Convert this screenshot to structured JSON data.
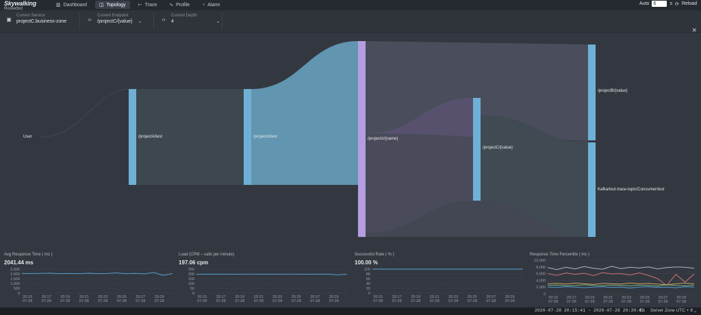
{
  "app": {
    "name": "Skywalking",
    "subtitle": "Rocketbot"
  },
  "nav": [
    {
      "label": "Dashboard",
      "icon": "dashboard-icon",
      "glyph": "▥",
      "active": false
    },
    {
      "label": "Topology",
      "icon": "topology-icon",
      "glyph": "◫",
      "active": true
    },
    {
      "label": "Trace",
      "icon": "trace-icon",
      "glyph": "⊢",
      "active": false
    },
    {
      "label": "Profile",
      "icon": "profile-icon",
      "glyph": "∿",
      "active": false
    },
    {
      "label": "Alarm",
      "icon": "alarm-icon",
      "glyph": "◔",
      "active": false
    }
  ],
  "auto_refresh": {
    "label": "Auto",
    "value": "6",
    "unit": "s",
    "reload_label": "Reload"
  },
  "toolbar": {
    "service": {
      "label": "Current Service",
      "value": "projectC.business-zone"
    },
    "endpoint": {
      "label": "Current Endpoint",
      "value": "/projectC/{value}"
    },
    "depth": {
      "label": "Current Depth",
      "value": "4"
    }
  },
  "topology": {
    "nodes": {
      "user": "User",
      "a_test_1": "/projectA/test",
      "a_test_2": "/projectA/test",
      "a_name": "/projectA/{name}",
      "c_value": "/projectC/{value}",
      "b_value": "/projectB/{value}",
      "kafka": "Kafka/test-trace-topic/Consumer/test"
    },
    "colors": {
      "bar": "#6fb1d6",
      "bar_selected": "#b59ee0",
      "flow_blue": "#6aa6c4",
      "flow_grey": "#4a4f5c",
      "flow_purple": "#5d5370"
    }
  },
  "time_ticks": [
    {
      "time": "20:15",
      "date": "07-28"
    },
    {
      "time": "20:17",
      "date": "07-28"
    },
    {
      "time": "20:19",
      "date": "07-28"
    },
    {
      "time": "20:21",
      "date": "07-28"
    },
    {
      "time": "20:23",
      "date": "07-28"
    },
    {
      "time": "20:25",
      "date": "07-28"
    },
    {
      "time": "20:27",
      "date": "07-28"
    },
    {
      "time": "20:29",
      "date": "07-28"
    }
  ],
  "metrics": {
    "avg_response": {
      "title": "Avg Response Time ( ms )",
      "value": "2041.44 ms",
      "chart_data": {
        "type": "line",
        "y_ticks": [
          "2,500",
          "2,000",
          "1,500",
          "1,000",
          "500",
          "0"
        ],
        "ylim": [
          0,
          2500
        ],
        "series": [
          {
            "color": "#5aa7e0",
            "values": [
              2050,
              2040,
              2060,
              2080,
              2030,
              2050,
              2020,
              2070,
              2040,
              2050,
              2100,
              2030,
              2060,
              2010,
              2150,
              1850,
              2040
            ]
          }
        ]
      }
    },
    "load": {
      "title": "Load (CPM – calls per minute)",
      "value": "197.06 cpm",
      "chart_data": {
        "type": "line",
        "y_ticks": [
          "250",
          "200",
          "150",
          "100",
          "50",
          "0"
        ],
        "ylim": [
          0,
          250
        ],
        "series": [
          {
            "color": "#5aa7e0",
            "values": [
              197,
              196,
              198,
              197,
              196,
              197,
              198,
              197,
              196,
              197,
              198,
              197,
              196,
              197,
              198,
              190,
              197
            ]
          }
        ]
      }
    },
    "success_rate": {
      "title": "Successful Rate ( % )",
      "value": "100.00 %",
      "chart_data": {
        "type": "line",
        "y_ticks": [
          "100",
          "80",
          "60",
          "40",
          "20",
          "0"
        ],
        "ylim": [
          0,
          100
        ],
        "series": [
          {
            "color": "#5aa7e0",
            "values": [
              100,
              100,
              100,
              100,
              100,
              100,
              100,
              100,
              100,
              100,
              100,
              100,
              100,
              100,
              100,
              100,
              100
            ]
          }
        ]
      }
    },
    "percentile": {
      "title": "Response Time Percentile ( ms )",
      "chart_data": {
        "type": "line",
        "y_ticks": [
          "10,000",
          "8,000",
          "6,000",
          "4,000",
          "2,000",
          "0"
        ],
        "ylim": [
          0,
          10000
        ],
        "series": [
          {
            "color": "#c2c6cc",
            "values": [
              7800,
              7200,
              7900,
              7400,
              8100,
              7600,
              7300,
              8200,
              7500,
              7900,
              7700,
              8000,
              7400,
              7800,
              8000,
              7900,
              7600
            ]
          },
          {
            "color": "#e07a7a",
            "values": [
              6000,
              5500,
              6200,
              5800,
              6100,
              5400,
              6300,
              5900,
              6000,
              5600,
              6200,
              5500,
              4500,
              2500,
              5800,
              3500,
              5900
            ]
          },
          {
            "color": "#e0b060",
            "values": [
              3000,
              3100,
              2900,
              3200,
              3000,
              2800,
              3100,
              3000,
              2900,
              3200,
              3000,
              3100,
              2900,
              2700,
              3000,
              3200,
              3000
            ]
          },
          {
            "color": "#7fc28a",
            "values": [
              2500,
              2600,
              2400,
              2500,
              2700,
              2500,
              2400,
              2600,
              2500,
              2400,
              2600,
              2500,
              2300,
              2700,
              2500,
              2400,
              2600
            ]
          },
          {
            "color": "#5aa7e0",
            "values": [
              2000,
              1900,
              2100,
              2000,
              1800,
              2000,
              2100,
              1900,
              2000,
              1700,
              2000,
              2100,
              1900,
              2000,
              1800,
              2100,
              2000
            ]
          }
        ]
      }
    }
  },
  "footer": {
    "time_range": "2020-07-28 20:15:41 ~ 2020-07-28 20:30:41",
    "lang": "En",
    "zone_label": "Server Zone UTC + 8"
  }
}
